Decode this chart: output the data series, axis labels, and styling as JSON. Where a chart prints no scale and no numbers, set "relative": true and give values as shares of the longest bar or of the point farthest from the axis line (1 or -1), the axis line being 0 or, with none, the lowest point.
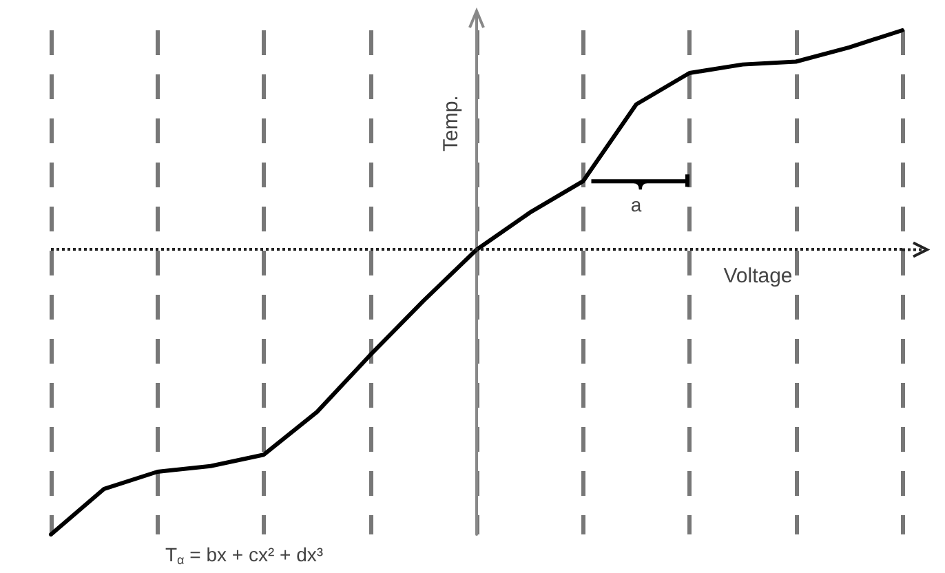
{
  "chart_data": {
    "type": "line",
    "relative": true,
    "xlabel": "Voltage",
    "ylabel": "Temp.",
    "categories": [
      null,
      null,
      null,
      null,
      null,
      null,
      null,
      null,
      null,
      null,
      null,
      null,
      null,
      null,
      null,
      null,
      null
    ],
    "series": [
      {
        "color": "#000000",
        "values": [
          -1,
          -0.84,
          -0.78,
          -0.76,
          -0.72,
          -0.57,
          -0.37,
          -0.18,
          0,
          0.13,
          0.24,
          0.51,
          0.62,
          0.65,
          0.66,
          0.71,
          0.77
        ]
      }
    ],
    "annotations": [
      "a",
      "T$_{α}$ = bx + cx² + dx³"
    ],
    "ref_lines": [
      {
        "axis": "y",
        "value": 0,
        "color": "#222222",
        "line_style": "dotted"
      }
    ],
    "grid": "x",
    "marker": "none",
    "line_style": "solid"
  }
}
